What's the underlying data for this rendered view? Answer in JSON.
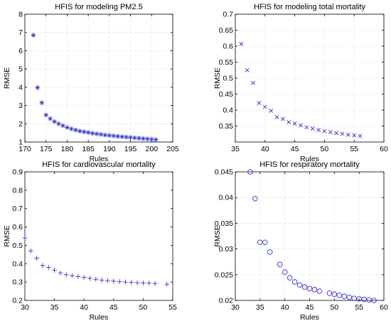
{
  "chart_data": [
    {
      "type": "scatter",
      "title": "HFIS for modeling PM2.5",
      "xlabel": "Rules",
      "ylabel": "RMSE",
      "xlim": [
        170,
        205
      ],
      "ylim": [
        1,
        8
      ],
      "xticks": [
        170,
        175,
        180,
        185,
        190,
        195,
        200,
        205
      ],
      "yticks": [
        1,
        2,
        3,
        4,
        5,
        6,
        7,
        8
      ],
      "grid": true,
      "marker": "asterisk",
      "color": "#3333dd",
      "series": [
        {
          "x": [
            172,
            173,
            174,
            175,
            176,
            177,
            178,
            179,
            180,
            181,
            182,
            183,
            184,
            185,
            186,
            187,
            188,
            189,
            190,
            191,
            192,
            193,
            194,
            195,
            196,
            197,
            198,
            199,
            200,
            201
          ],
          "y": [
            6.85,
            3.98,
            3.15,
            2.48,
            2.28,
            2.12,
            2.0,
            1.9,
            1.8,
            1.72,
            1.66,
            1.6,
            1.56,
            1.52,
            1.48,
            1.45,
            1.42,
            1.38,
            1.36,
            1.34,
            1.31,
            1.29,
            1.27,
            1.25,
            1.23,
            1.21,
            1.19,
            1.17,
            1.15,
            1.13
          ]
        }
      ]
    },
    {
      "type": "scatter",
      "title": "HFIS for modeling total mortality",
      "xlabel": "Rules",
      "ylabel": "RMSE",
      "xlim": [
        35,
        60
      ],
      "ylim": [
        0.3,
        0.7
      ],
      "xticks": [
        35,
        40,
        45,
        50,
        55,
        60
      ],
      "yticks": [
        0.35,
        0.4,
        0.45,
        0.5,
        0.55,
        0.6,
        0.65,
        0.7
      ],
      "grid": true,
      "marker": "x",
      "color": "#3333dd",
      "series": [
        {
          "x": [
            36,
            37,
            38,
            39,
            40,
            41,
            42,
            43,
            44,
            45,
            46,
            47,
            48,
            49,
            50,
            51,
            52,
            53,
            54,
            55,
            56
          ],
          "y": [
            0.607,
            0.525,
            0.485,
            0.422,
            0.41,
            0.398,
            0.378,
            0.372,
            0.362,
            0.358,
            0.352,
            0.346,
            0.342,
            0.338,
            0.334,
            0.331,
            0.328,
            0.326,
            0.323,
            0.321,
            0.319
          ]
        }
      ]
    },
    {
      "type": "scatter",
      "title": "HFIS for cardiovascular mortality",
      "xlabel": "Rules",
      "ylabel": "RMSE",
      "xlim": [
        30,
        55
      ],
      "ylim": [
        0.2,
        0.9
      ],
      "xticks": [
        30,
        35,
        40,
        45,
        50,
        55
      ],
      "yticks": [
        0.2,
        0.3,
        0.4,
        0.5,
        0.6,
        0.7,
        0.8,
        0.9
      ],
      "grid": false,
      "marker": "plus",
      "color": "#3333dd",
      "series": [
        {
          "x": [
            30,
            31,
            32,
            33,
            34,
            35,
            36,
            37,
            38,
            39,
            40,
            41,
            42,
            43,
            44,
            45,
            46,
            47,
            48,
            49,
            50,
            51,
            52,
            54
          ],
          "y": [
            0.54,
            0.47,
            0.43,
            0.39,
            0.38,
            0.365,
            0.35,
            0.34,
            0.335,
            0.33,
            0.325,
            0.32,
            0.315,
            0.31,
            0.308,
            0.305,
            0.302,
            0.3,
            0.298,
            0.296,
            0.295,
            0.294,
            0.292,
            0.288
          ]
        }
      ]
    },
    {
      "type": "scatter",
      "title": "HFIS for respiratory mortality",
      "xlabel": "Rules",
      "ylabel": "RMSE",
      "xlim": [
        30,
        60
      ],
      "ylim": [
        0.02,
        0.045
      ],
      "xticks": [
        30,
        35,
        40,
        45,
        50,
        55,
        60
      ],
      "yticks": [
        0.02,
        0.025,
        0.03,
        0.035,
        0.04,
        0.045
      ],
      "grid": true,
      "marker": "circle",
      "color": "#3333dd",
      "series": [
        {
          "x": [
            33,
            34,
            35,
            36,
            37,
            39,
            40,
            41,
            42,
            43,
            44,
            45,
            46,
            47,
            49,
            50,
            51,
            52,
            53,
            54,
            55,
            56,
            57,
            58
          ],
          "y": [
            0.045,
            0.0398,
            0.0313,
            0.0313,
            0.0294,
            0.027,
            0.0255,
            0.0244,
            0.0236,
            0.023,
            0.0226,
            0.0223,
            0.0221,
            0.0218,
            0.0214,
            0.0212,
            0.021,
            0.0208,
            0.0206,
            0.0204,
            0.0203,
            0.0202,
            0.0201,
            0.02
          ]
        }
      ]
    }
  ]
}
